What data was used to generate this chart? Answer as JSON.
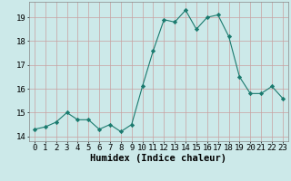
{
  "x": [
    0,
    1,
    2,
    3,
    4,
    5,
    6,
    7,
    8,
    9,
    10,
    11,
    12,
    13,
    14,
    15,
    16,
    17,
    18,
    19,
    20,
    21,
    22,
    23
  ],
  "y": [
    14.3,
    14.4,
    14.6,
    15.0,
    14.7,
    14.7,
    14.3,
    14.5,
    14.2,
    14.5,
    16.1,
    17.6,
    18.9,
    18.8,
    19.3,
    18.5,
    19.0,
    19.1,
    18.2,
    16.5,
    15.8,
    15.8,
    16.1,
    15.6
  ],
  "line_color": "#1a7a6e",
  "marker": "D",
  "marker_size": 2.2,
  "bg_color": "#cce9e9",
  "grid_color": "#c8a0a0",
  "xlabel": "Humidex (Indice chaleur)",
  "ylim": [
    13.8,
    19.65
  ],
  "xlim": [
    -0.5,
    23.5
  ],
  "yticks": [
    14,
    15,
    16,
    17,
    18,
    19
  ],
  "xticks": [
    0,
    1,
    2,
    3,
    4,
    5,
    6,
    7,
    8,
    9,
    10,
    11,
    12,
    13,
    14,
    15,
    16,
    17,
    18,
    19,
    20,
    21,
    22,
    23
  ],
  "xlabel_fontsize": 7.5,
  "tick_fontsize": 6.5
}
